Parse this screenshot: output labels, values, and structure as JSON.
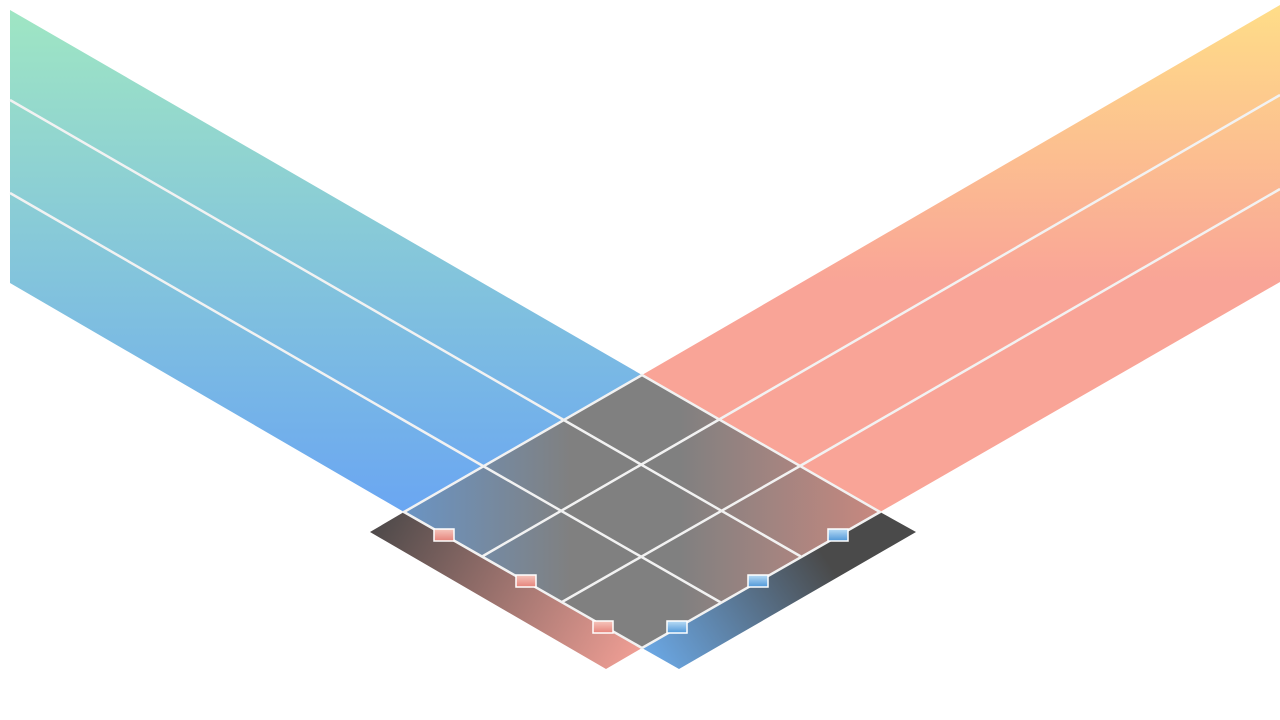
{
  "colors": {
    "background": "#ffffff",
    "left_band_top": "#9fe6c3",
    "left_band_bottom": "#6aa6f2",
    "right_band_top": "#ffdd88",
    "right_band_bottom": "#f9a497",
    "crossing_left": "#6a94c4",
    "crossing_mid": "#808080",
    "crossing_right": "#c8887f",
    "left_base_dark": "#4f4a4a",
    "left_base_light": "#f3a096",
    "right_base_dark": "#4a4a4a",
    "right_base_light": "#6aa6e2",
    "grid_line": "#f2f2f2"
  },
  "weave": {
    "left_band_lanes": 3,
    "right_band_lanes": 3,
    "left_base_markers": 3,
    "right_base_markers": 3
  }
}
